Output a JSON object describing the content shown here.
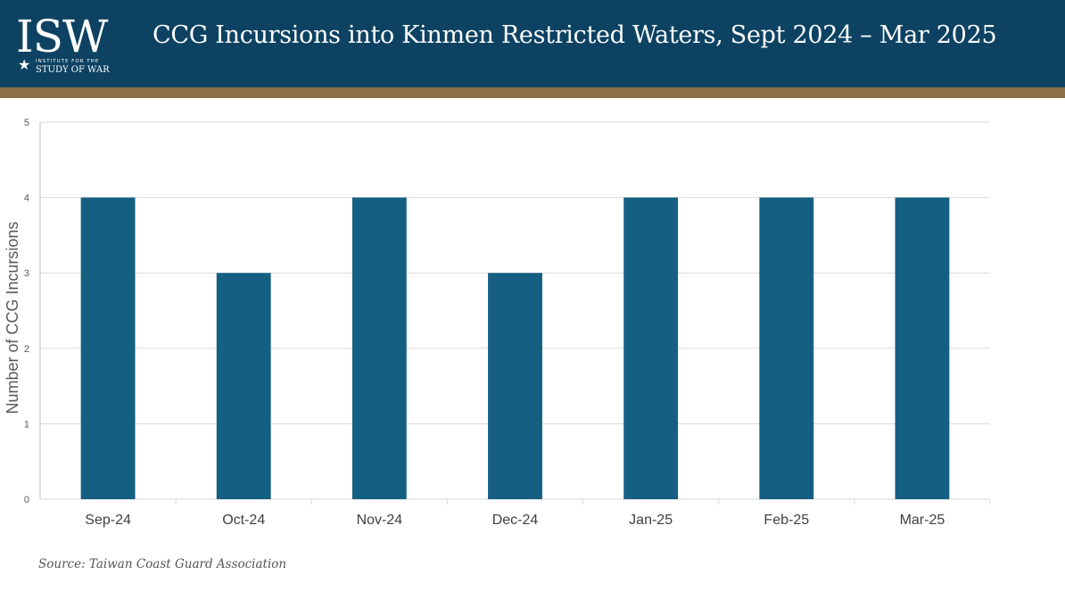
{
  "header": {
    "logo_letters": "ISW",
    "logo_line1": "INSTITUTE FOR THE",
    "logo_line2": "STUDY OF WAR",
    "logo_icon": "star-icon",
    "title": "CCG Incursions into Kinmen Restricted Waters, Sept 2024 – Mar 2025"
  },
  "colors": {
    "header_bg": "#0d4262",
    "header_stripe": "#8c6e48",
    "bar": "#156082",
    "grid": "#d9d9d9"
  },
  "chart_data": {
    "type": "bar",
    "categories": [
      "Sep-24",
      "Oct-24",
      "Nov-24",
      "Dec-24",
      "Jan-25",
      "Feb-25",
      "Mar-25"
    ],
    "values": [
      4,
      3,
      4,
      3,
      4,
      4,
      4
    ],
    "title": "",
    "xlabel": "",
    "ylabel": "Number of CCG Incursions",
    "ylim": [
      0,
      5
    ],
    "yticks": [
      0,
      1,
      2,
      3,
      4,
      5
    ],
    "grid": true,
    "legend": "none"
  },
  "footer": {
    "source": "Source: Taiwan Coast Guard Association"
  }
}
